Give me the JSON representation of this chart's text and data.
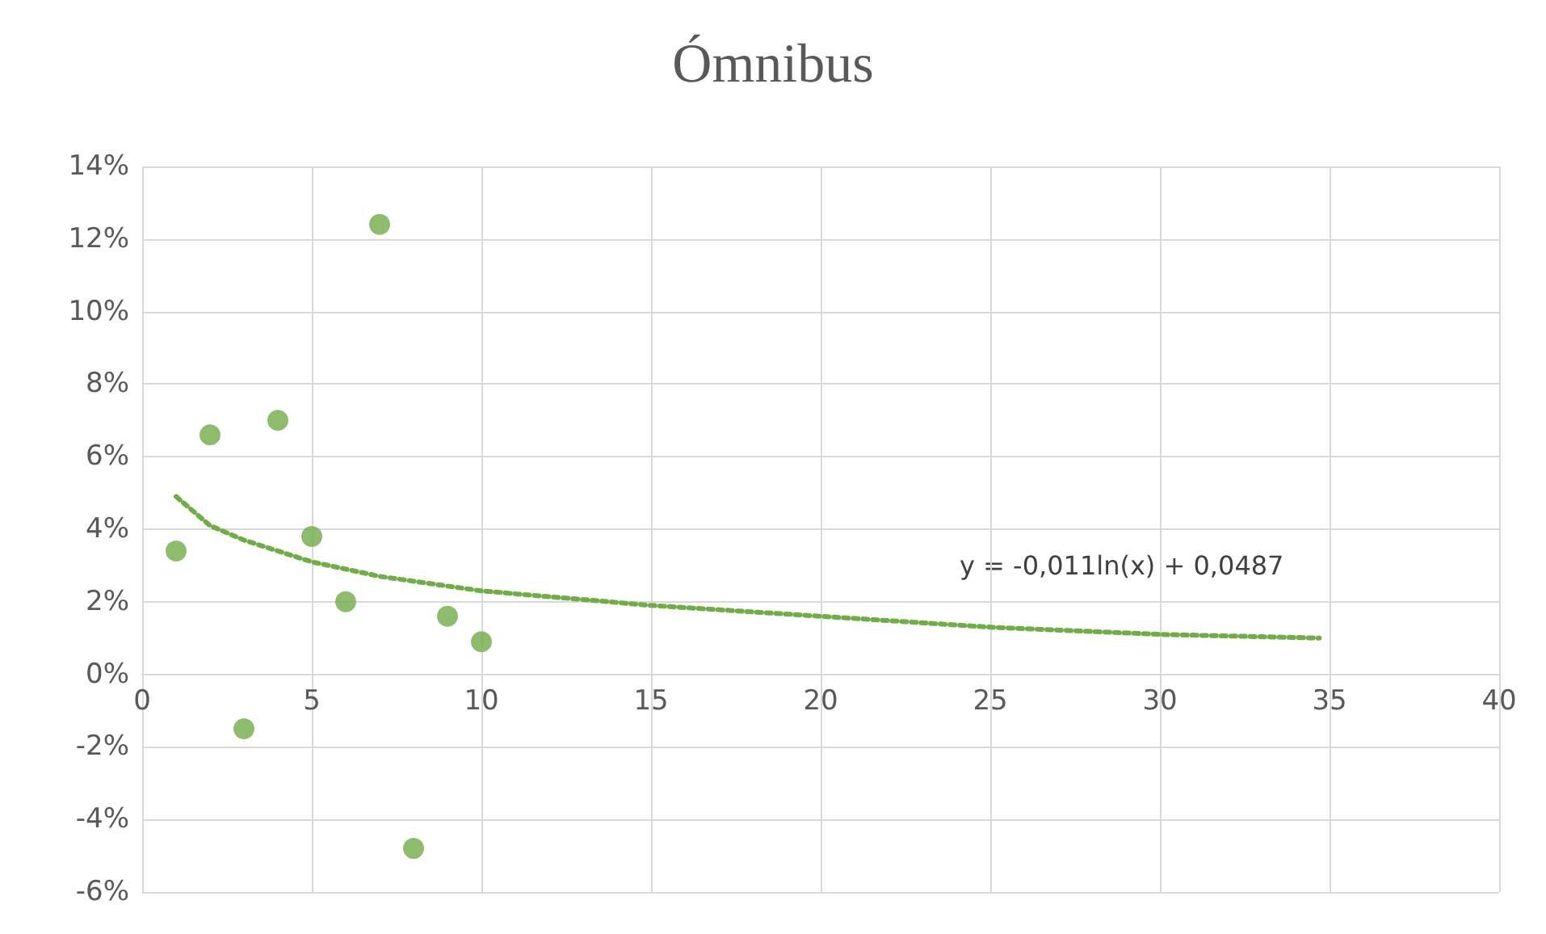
{
  "chart_data": {
    "type": "scatter",
    "title": "Ómnibus",
    "x": [
      1,
      2,
      3,
      4,
      5,
      6,
      7,
      8,
      9,
      10
    ],
    "series": [
      {
        "color": "#70ad47",
        "values": [
          3.4,
          6.6,
          -1.5,
          7.0,
          3.8,
          2.0,
          12.4,
          -4.8,
          1.6,
          0.9
        ],
        "marker": "circle"
      },
      {
        "type": "line",
        "color": "#70ad47",
        "line_style": "dotted",
        "marker": "none",
        "x": [
          1,
          2,
          3,
          4,
          5,
          7,
          10,
          15,
          20,
          25,
          30,
          34.7
        ],
        "values": [
          4.9,
          4.1,
          3.7,
          3.4,
          3.1,
          2.7,
          2.3,
          1.9,
          1.6,
          1.3,
          1.1,
          1.0
        ]
      }
    ],
    "annotations": [
      "y = -0,011ln(x) + 0,0487"
    ],
    "xlim": [
      0,
      40
    ],
    "xticks": [
      0,
      5,
      10,
      15,
      20,
      25,
      30,
      35,
      40
    ],
    "ylim": [
      -6,
      14
    ],
    "yticks": [
      {
        "value": -6,
        "label": "-6%"
      },
      {
        "value": -4,
        "label": "-4%"
      },
      {
        "value": -2,
        "label": "-2%"
      },
      {
        "value": 0,
        "label": "0%"
      },
      {
        "value": 2,
        "label": "2%"
      },
      {
        "value": 4,
        "label": "4%"
      },
      {
        "value": 6,
        "label": "6%"
      },
      {
        "value": 8,
        "label": "8%"
      },
      {
        "value": 10,
        "label": "10%"
      },
      {
        "value": 12,
        "label": "12%"
      },
      {
        "value": 14,
        "label": "14%"
      }
    ],
    "grid": true
  }
}
